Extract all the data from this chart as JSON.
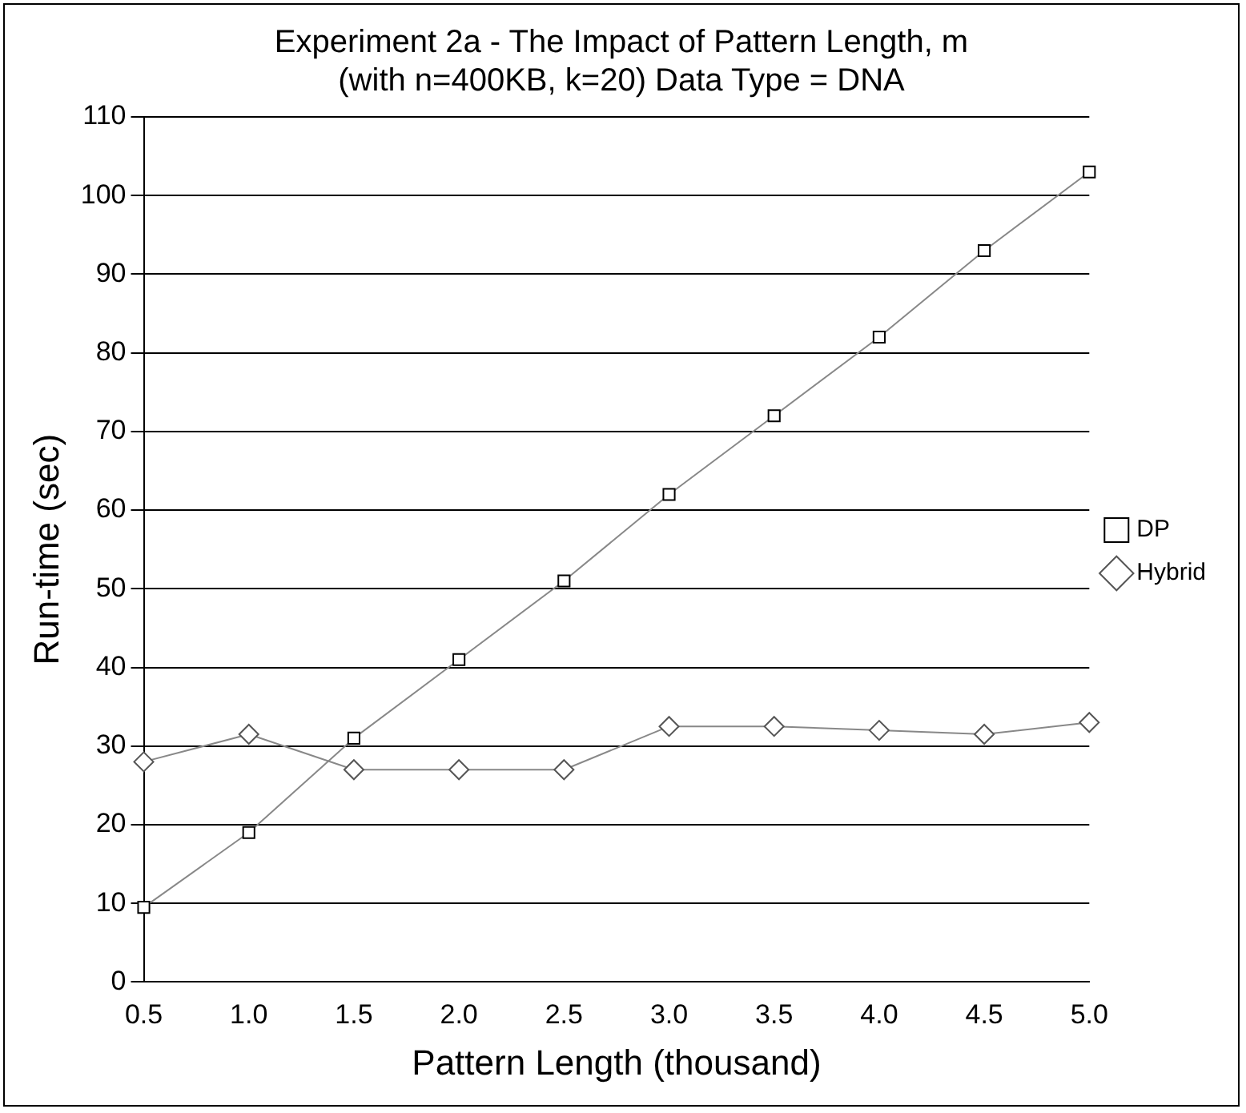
{
  "chart_data": {
    "type": "line",
    "title": "Experiment 2a - The Impact of Pattern Length, m\n(with n=400KB, k=20) Data Type = DNA",
    "xlabel": "Pattern Length (thousand)",
    "ylabel": "Run-time (sec)",
    "categories": [
      "0.5",
      "1.0",
      "1.5",
      "2.0",
      "2.5",
      "3.0",
      "3.5",
      "4.0",
      "4.5",
      "5.0"
    ],
    "series": [
      {
        "name": "DP",
        "color": "#000000",
        "marker": "square",
        "values": [
          9.5,
          19,
          31,
          41,
          51,
          62,
          72,
          82,
          93,
          103
        ]
      },
      {
        "name": "Hybrid",
        "color": "#555555",
        "marker": "diamond",
        "values": [
          28,
          31.5,
          27,
          27,
          27,
          32.5,
          32.5,
          32,
          31.5,
          33
        ]
      }
    ],
    "ylim": [
      0,
      110
    ],
    "yticks": [
      0,
      10,
      20,
      30,
      40,
      50,
      60,
      70,
      80,
      90,
      100,
      110
    ],
    "grid": "y",
    "legend": "right",
    "line_style": "solid"
  }
}
